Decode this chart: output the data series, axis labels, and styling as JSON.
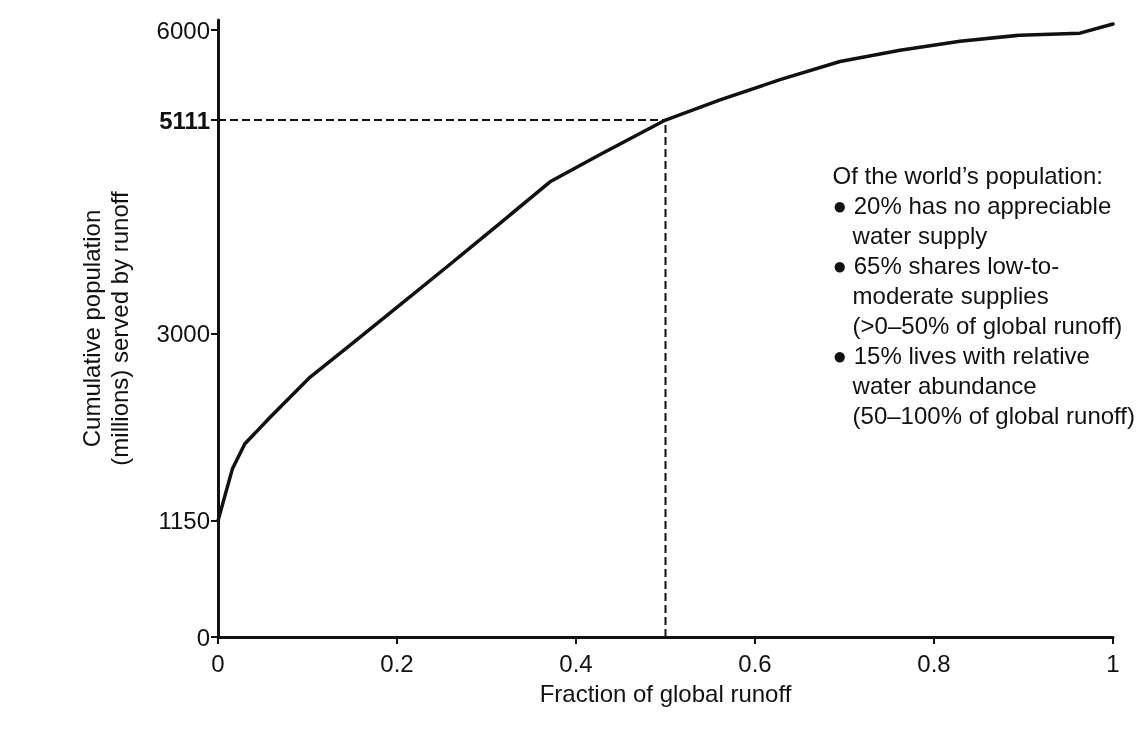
{
  "chart_data": {
    "type": "line",
    "xlabel": "Fraction of global runoff",
    "ylabel": "Cumulative population\n(millions) served by runoff",
    "x": [
      0,
      0.016,
      0.03,
      0.058,
      0.103,
      0.147,
      0.203,
      0.26,
      0.315,
      0.371,
      0.427,
      0.5,
      0.561,
      0.628,
      0.695,
      0.762,
      0.829,
      0.896,
      0.963,
      1
    ],
    "series": [
      {
        "color": "#111111",
        "values": [
          1150,
          1660,
          1910,
          2170,
          2570,
          2880,
          3280,
          3690,
          4090,
          4500,
          4770,
          5111,
          5310,
          5510,
          5690,
          5800,
          5890,
          5950,
          5970,
          6060
        ]
      }
    ],
    "xlim": [
      0,
      1
    ],
    "xticks": [
      0,
      0.2,
      0.4,
      0.6,
      0.8,
      1
    ],
    "ylim": [
      0,
      6100
    ],
    "yticks": [
      0,
      1150,
      3000,
      5111,
      6000
    ],
    "ref_lines": [
      {
        "axis": "x",
        "value": 0.5,
        "line_style": "dashed",
        "color": "#111111"
      },
      {
        "axis": "y",
        "value": 5111,
        "line_style": "dashed",
        "color": "#111111"
      }
    ],
    "annotations": [
      "Of the world’s population:",
      "● 20% has no appreciable\n   water supply",
      "● 65% shares low-to-\n   moderate supplies\n   (>0–50% of global runoff)",
      "● 15% lives with relative\n   water abundance\n   (50–100% of global runoff)"
    ],
    "marker": "none",
    "line_style": "solid",
    "grid": false
  }
}
